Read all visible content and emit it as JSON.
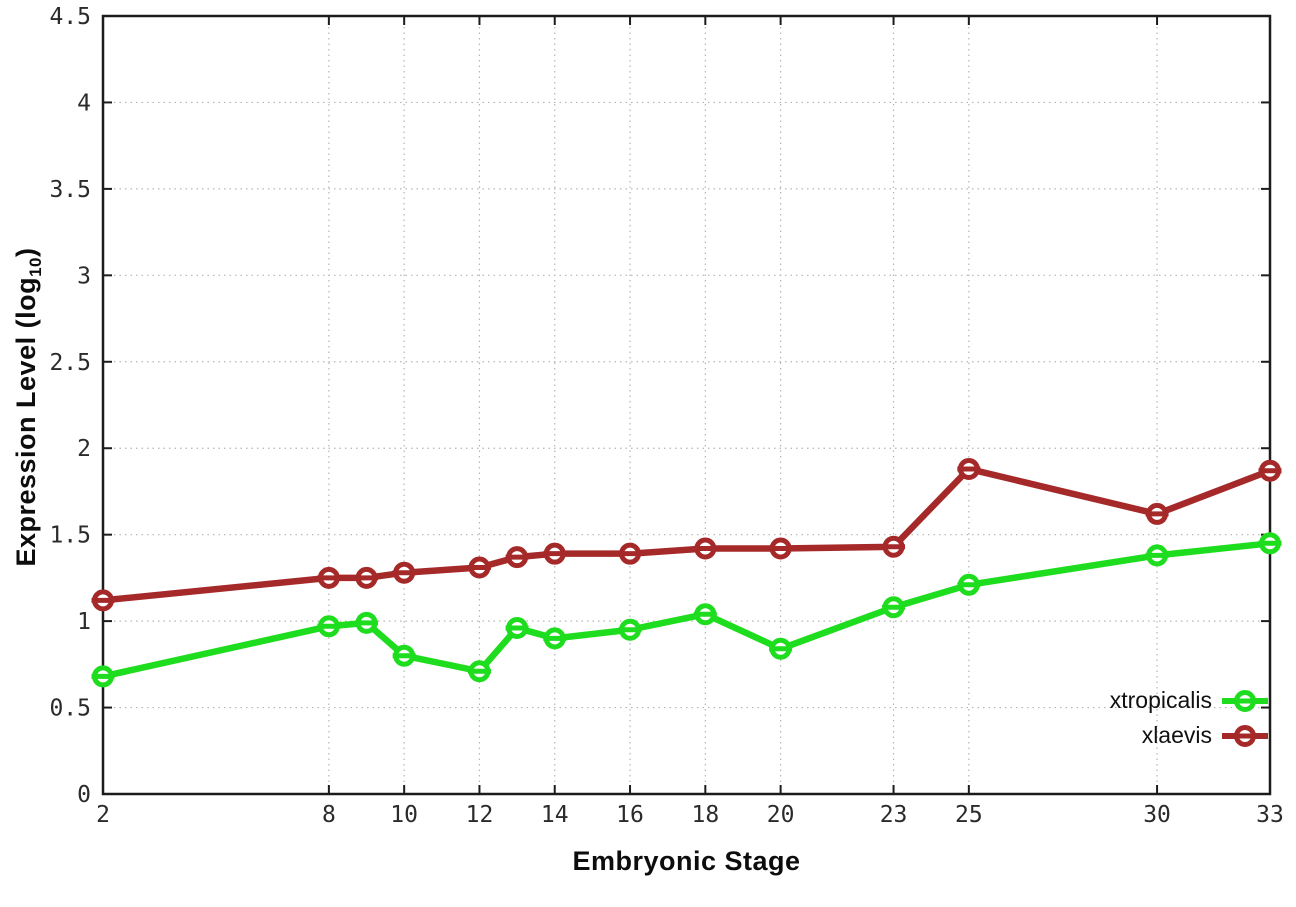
{
  "figure": {
    "xlabel": "Embryonic Stage",
    "ylabel_prefix": "Expression Level (log",
    "ylabel_subscript": "10",
    "ylabel_suffix": ")",
    "background": "#ffffff"
  },
  "chart_data": {
    "type": "line",
    "title": "",
    "xlabel": "Embryonic Stage",
    "ylabel": "Expression Level (log10)",
    "x": [
      2,
      8,
      9,
      10,
      12,
      13,
      14,
      16,
      18,
      20,
      23,
      25,
      30,
      33
    ],
    "series": [
      {
        "name": "xtropicalis",
        "color": "#1edc1e",
        "values": [
          0.68,
          0.97,
          0.99,
          0.8,
          0.71,
          0.96,
          0.9,
          0.95,
          1.04,
          0.84,
          1.08,
          1.21,
          1.38,
          1.45
        ]
      },
      {
        "name": "xlaevis",
        "color": "#a62929",
        "values": [
          1.12,
          1.25,
          1.25,
          1.28,
          1.31,
          1.37,
          1.39,
          1.39,
          1.42,
          1.42,
          1.43,
          1.88,
          1.62,
          1.87
        ]
      }
    ],
    "xlim": [
      2,
      33
    ],
    "ylim": [
      0,
      4.5
    ],
    "xticks": [
      2,
      8,
      10,
      12,
      14,
      16,
      18,
      20,
      23,
      25,
      30,
      33
    ],
    "yticks": [
      0,
      0.5,
      1,
      1.5,
      2,
      2.5,
      3,
      3.5,
      4,
      4.5
    ],
    "ytick_labels": [
      "0",
      "0.5",
      "1",
      "1.5",
      "2",
      "2.5",
      "3",
      "3.5",
      "4",
      "4.5"
    ],
    "grid": true,
    "grid_style": "dotted",
    "legend_position": "bottom-right",
    "marker": "open-circle-with-bar",
    "axis_color": "#1c1c1c",
    "grid_color": "#b5b5b5",
    "tick_label_color": "#2b2b2b"
  }
}
